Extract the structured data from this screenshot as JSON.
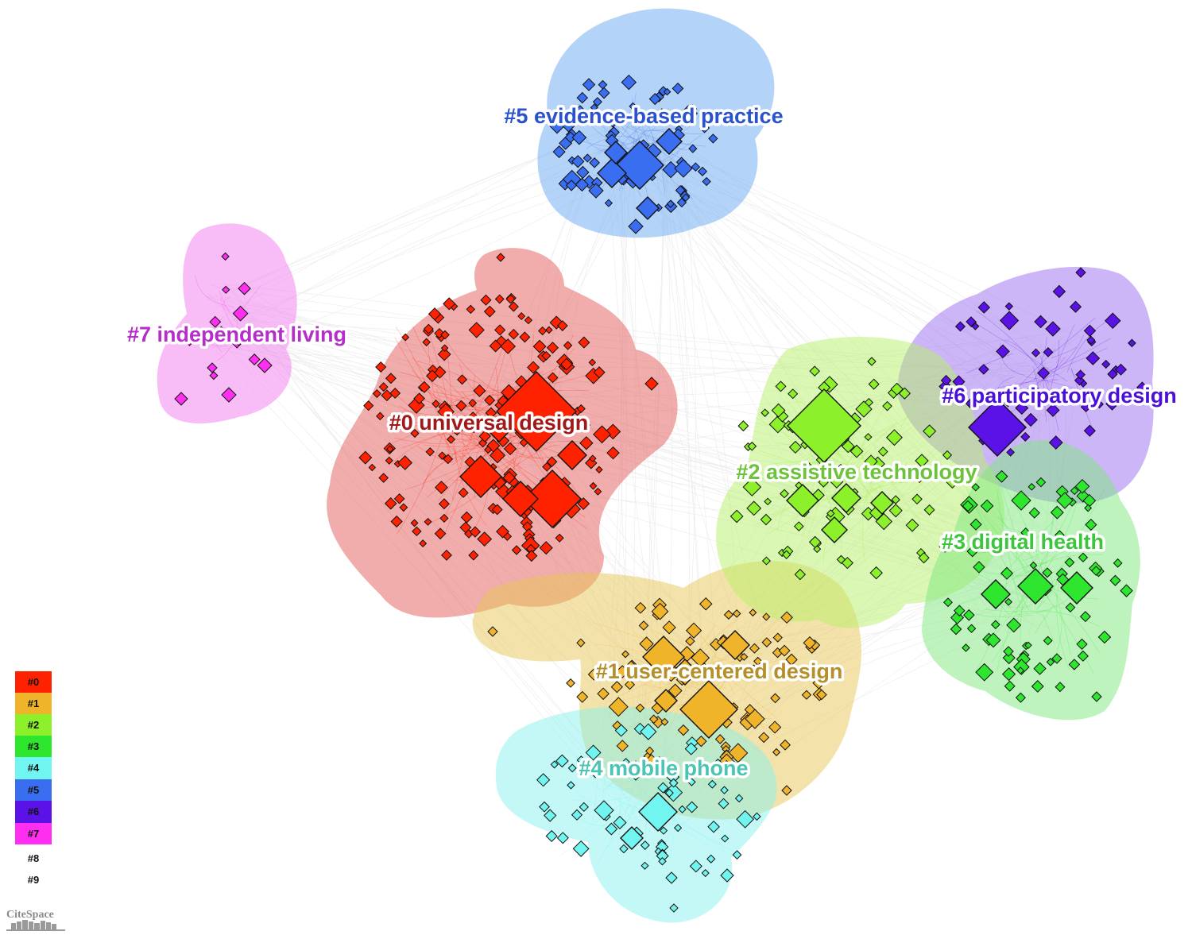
{
  "clusters": [
    {
      "id": "#0",
      "label": "#0 universal design",
      "color": "#ff2200",
      "fill": "#e35a5a",
      "text_color": "#a01818"
    },
    {
      "id": "#1",
      "label": "#1 user-centered design",
      "color": "#f0b42a",
      "fill": "#e8c654",
      "text_color": "#b5902a"
    },
    {
      "id": "#2",
      "label": "#2 assistive technology",
      "color": "#8cf02a",
      "fill": "#b8f06a",
      "text_color": "#6cc23a"
    },
    {
      "id": "#3",
      "label": "#3 digital health",
      "color": "#2ee62e",
      "fill": "#7ee87e",
      "text_color": "#3cc43c"
    },
    {
      "id": "#4",
      "label": "#4 mobile phone",
      "color": "#70f5f0",
      "fill": "#8af2f0",
      "text_color": "#4cc4b4"
    },
    {
      "id": "#5",
      "label": "#5 evidence-based practice",
      "color": "#3a6ef0",
      "fill": "#6aa8f2",
      "text_color": "#2a52cc"
    },
    {
      "id": "#6",
      "label": "#6 participatory design",
      "color": "#5a12e6",
      "fill": "#9a6ef0",
      "text_color": "#4a10d8"
    },
    {
      "id": "#7",
      "label": "#7 independent living",
      "color": "#ff2ef0",
      "fill": "#f27cf0",
      "text_color": "#b42ec8"
    }
  ],
  "legend": [
    {
      "label": "#0",
      "color": "#ff2200"
    },
    {
      "label": "#1",
      "color": "#f0b42a"
    },
    {
      "label": "#2",
      "color": "#8cf02a"
    },
    {
      "label": "#3",
      "color": "#2ee62e"
    },
    {
      "label": "#4",
      "color": "#70f5f0"
    },
    {
      "label": "#5",
      "color": "#3a6ef0"
    },
    {
      "label": "#6",
      "color": "#5a12e6"
    },
    {
      "label": "#7",
      "color": "#ff2ef0"
    },
    {
      "label": "#8",
      "color": ""
    },
    {
      "label": "#9",
      "color": ""
    }
  ],
  "logo": "CiteSpace"
}
